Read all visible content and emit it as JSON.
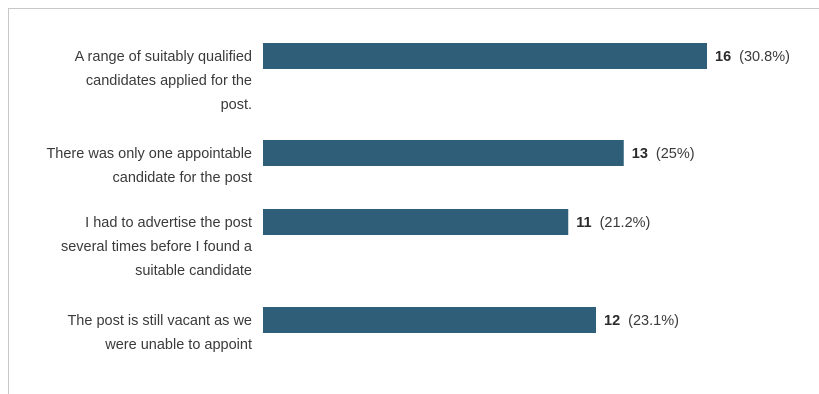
{
  "chart_data": {
    "type": "bar",
    "orientation": "horizontal",
    "categories": [
      [
        "A range of suitably qualified",
        "candidates applied for the",
        "post."
      ],
      [
        "There was only one appointable",
        "candidate for the post"
      ],
      [
        "I had to advertise the post",
        "several times before I found a",
        "suitable candidate"
      ],
      [
        "The post is still vacant as we",
        "were unable to appoint"
      ]
    ],
    "values": [
      16,
      13,
      11,
      12
    ],
    "labels": [
      {
        "count": "16",
        "percent": "(30.8%)"
      },
      {
        "count": "13",
        "percent": "(25%)"
      },
      {
        "count": "11",
        "percent": "(21.2%)"
      },
      {
        "count": "12",
        "percent": "(23.1%)"
      }
    ],
    "bar_color": "#2f5f78",
    "xlim": [
      0,
      16
    ],
    "grid": false,
    "legend": "none"
  }
}
